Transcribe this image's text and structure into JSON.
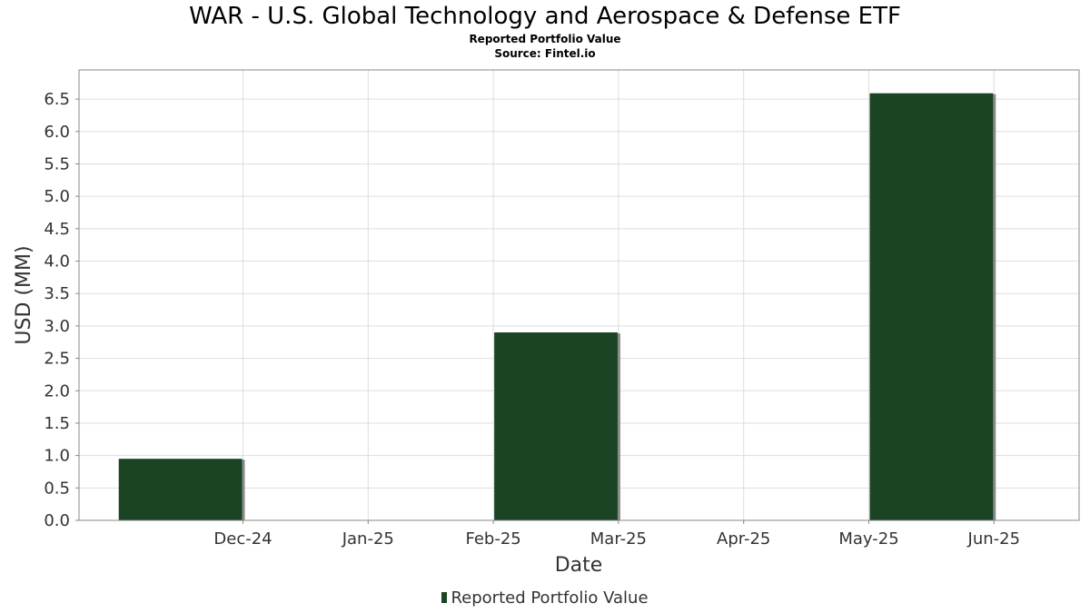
{
  "title": "WAR - U.S. Global Technology and Aerospace & Defense ETF",
  "subtitle": "Reported Portfolio Value",
  "source": "Source: Fintel.io",
  "legend_label": "Reported Portfolio Value",
  "colors": {
    "bar": "#1a4423",
    "bar_shadow": "#8a8a8a",
    "grid": "#dddddd",
    "frame": "#888888"
  },
  "chart_data": {
    "type": "bar",
    "xlabel": "Date",
    "ylabel": "USD (MM)",
    "categories": [
      "Dec-24",
      "Jan-25",
      "Feb-25",
      "Mar-25",
      "Apr-25",
      "May-25",
      "Jun-25"
    ],
    "yticks": [
      "0.0",
      "0.5",
      "1.0",
      "1.5",
      "2.0",
      "2.5",
      "3.0",
      "3.5",
      "4.0",
      "4.5",
      "5.0",
      "5.5",
      "6.0",
      "6.5"
    ],
    "ylim": [
      0,
      6.95
    ],
    "series": [
      {
        "name": "Reported Portfolio Value",
        "points": [
          {
            "start": "2024-11-01",
            "end": "2024-12-01",
            "value": 0.95
          },
          {
            "start": "2025-02-01",
            "end": "2025-03-01",
            "value": 2.9
          },
          {
            "start": "2025-05-01",
            "end": "2025-06-01",
            "value": 6.59
          }
        ]
      }
    ],
    "grid": true,
    "legend_position": "bottom-center"
  }
}
